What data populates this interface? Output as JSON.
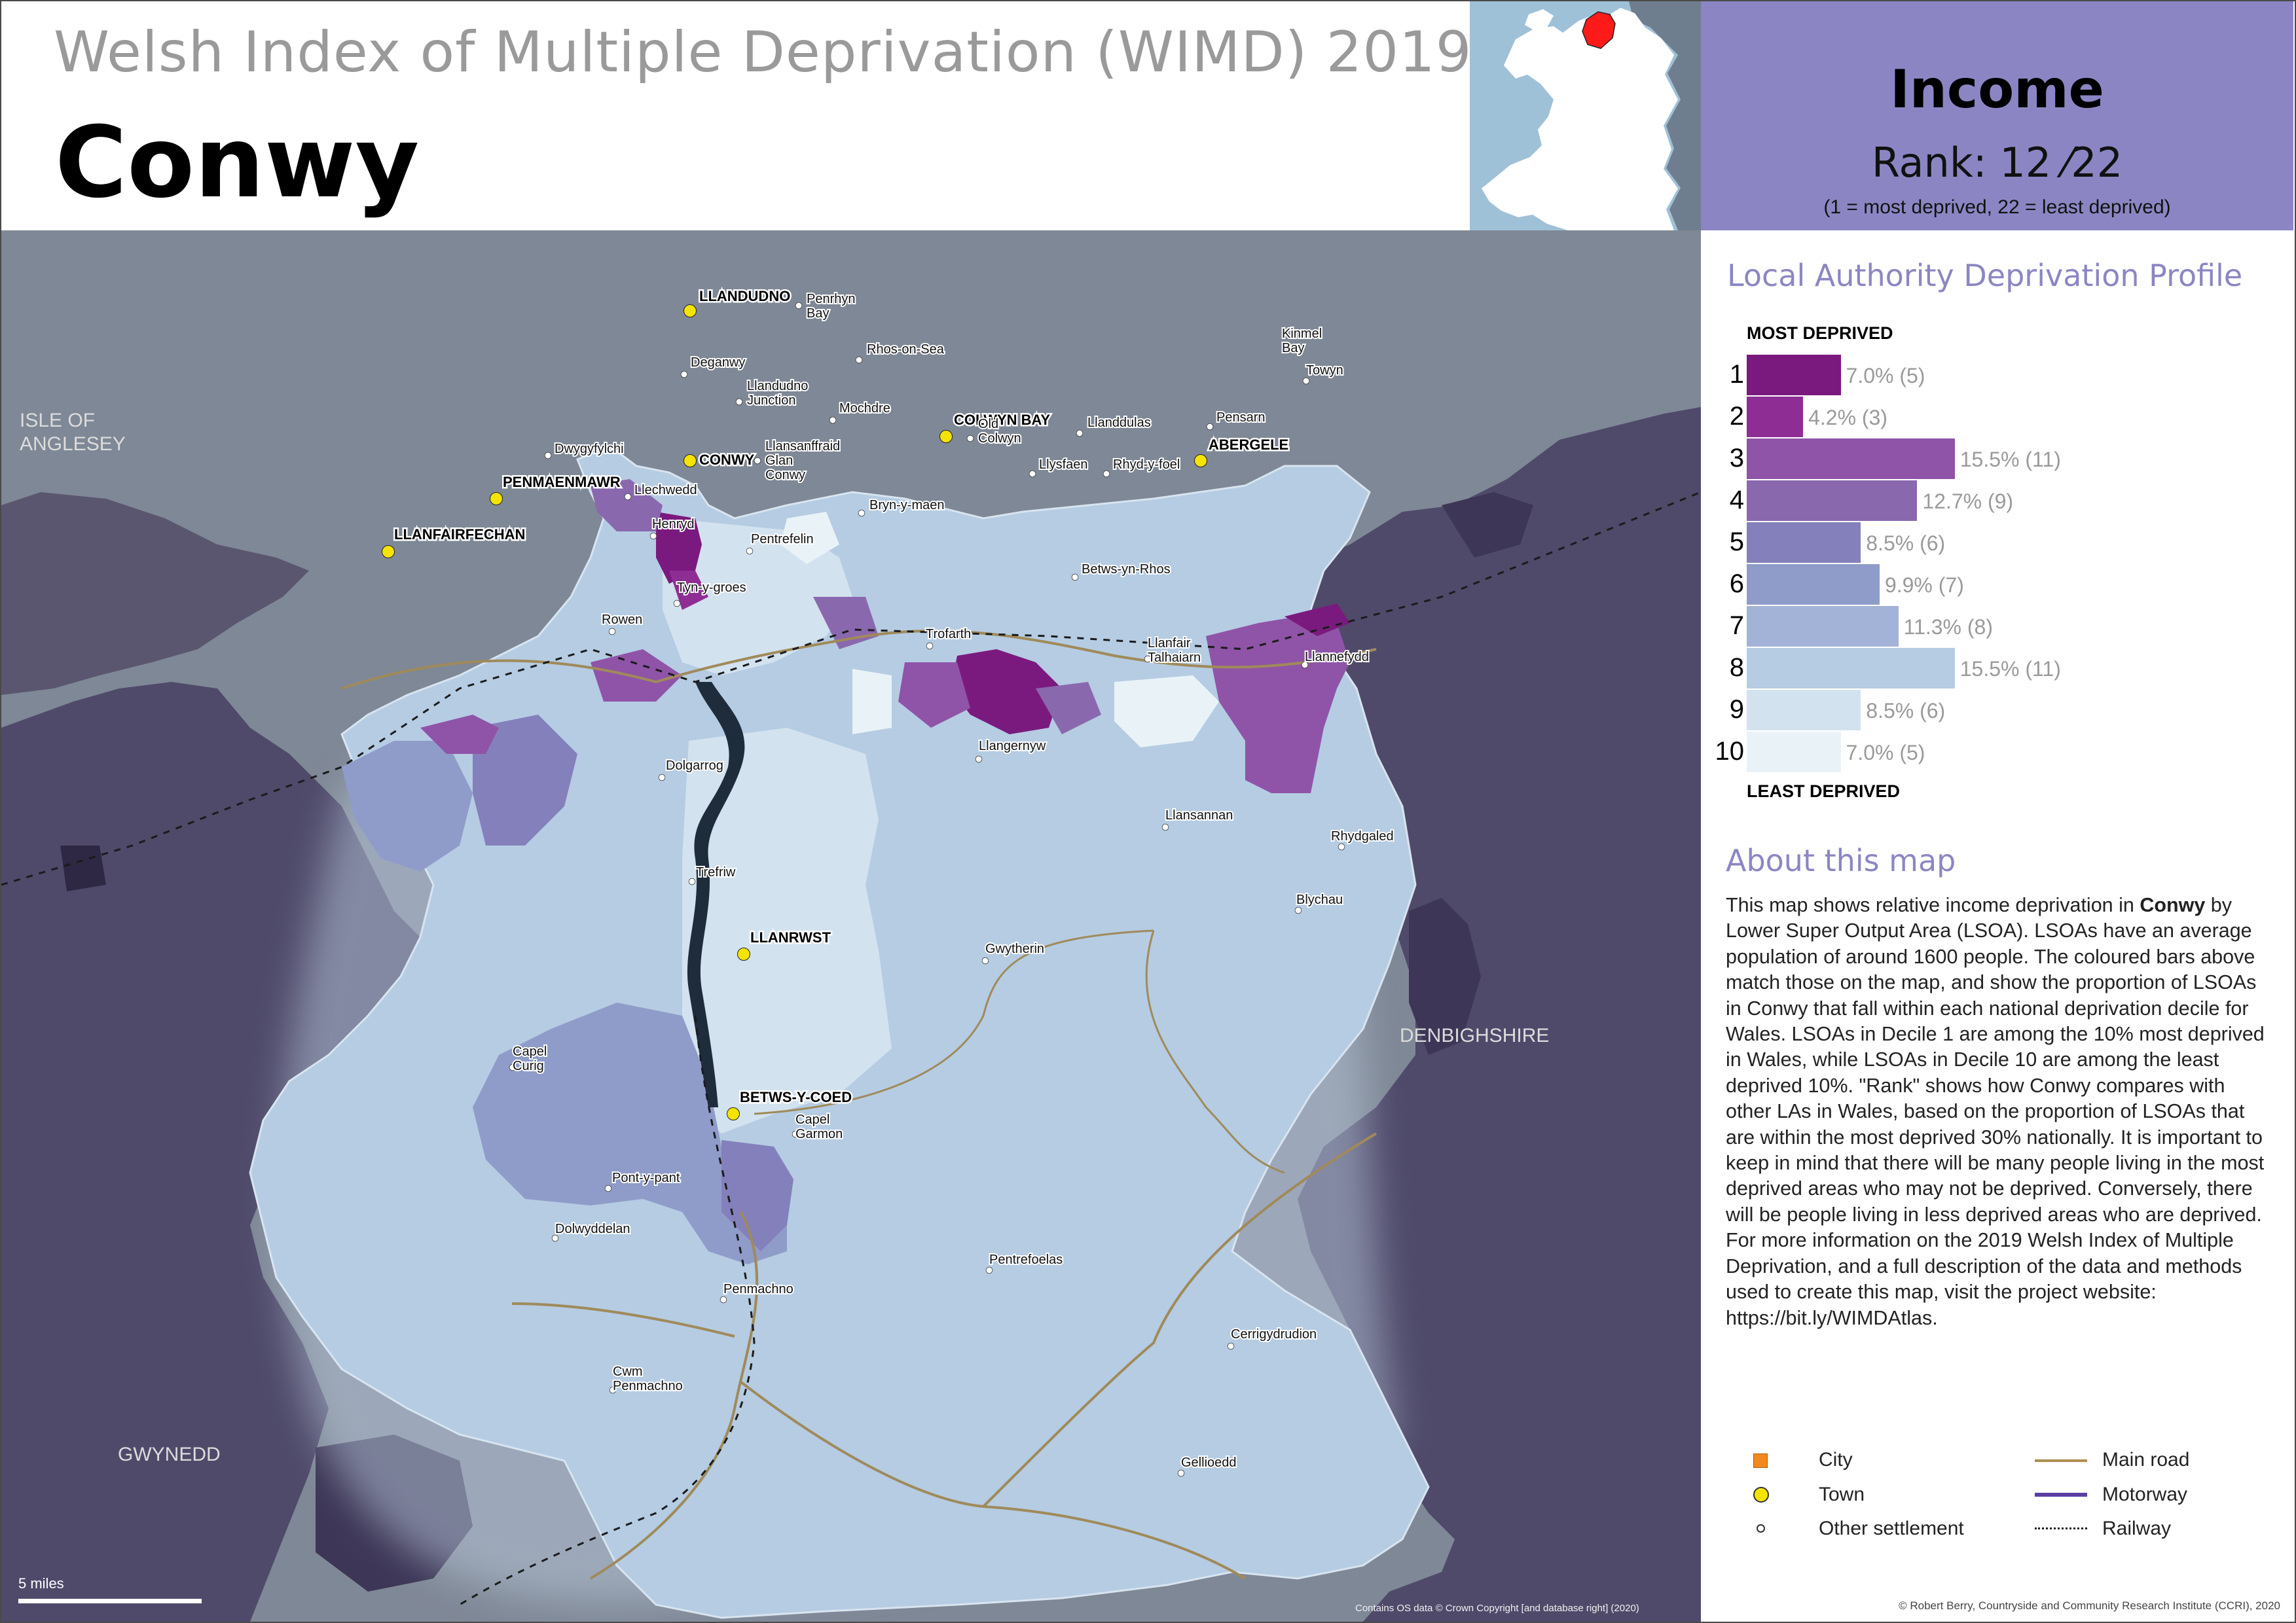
{
  "header": {
    "subtitle": "Welsh Index of Multiple Deprivation (WIMD) 2019",
    "la_name": "Conwy"
  },
  "domain_box": {
    "title": "Income",
    "rank_label": "Rank: 12 ⁄22",
    "rank_note": "(1 =   most deprived, 22 = least deprived)"
  },
  "map": {
    "seas": [
      "ISLE OF ANGLESEY"
    ],
    "areas": [
      {
        "name": "ISLE OF ANGLESEY",
        "class": "area-label"
      },
      {
        "name": "DENBIGHSHIRE",
        "class": "area-label"
      },
      {
        "name": "GWYNEDD",
        "class": "area-label"
      }
    ],
    "towns": [
      {
        "name": "LLANDUDNO"
      },
      {
        "name": "CONWY"
      },
      {
        "name": "COLWYN BAY"
      },
      {
        "name": "ABERGELE"
      },
      {
        "name": "PENMAENMAWR"
      },
      {
        "name": "LLANFAIRFECHAN"
      },
      {
        "name": "LLANRWST"
      },
      {
        "name": "BETWS-Y-COED"
      }
    ],
    "settlements": [
      {
        "name": "Penrhyn Bay"
      },
      {
        "name": "Rhos-on-Sea"
      },
      {
        "name": "Deganwy"
      },
      {
        "name": "Llandudno Junction"
      },
      {
        "name": "Mochdre"
      },
      {
        "name": "Old Colwyn"
      },
      {
        "name": "Llanddulas"
      },
      {
        "name": "Pensarn"
      },
      {
        "name": "Kinmel Bay"
      },
      {
        "name": "Towyn"
      },
      {
        "name": "Dwygyfylchi"
      },
      {
        "name": "Llechwedd"
      },
      {
        "name": "Llansanffraid Glan Conwy"
      },
      {
        "name": "Llysfaen"
      },
      {
        "name": "Rhyd-y-foel"
      },
      {
        "name": "Bryn-y-maen"
      },
      {
        "name": "Henryd"
      },
      {
        "name": "Pentrefelin"
      },
      {
        "name": "Betws-yn-Rhos"
      },
      {
        "name": "Rowen"
      },
      {
        "name": "Tyn-y-groes"
      },
      {
        "name": "Trofarth"
      },
      {
        "name": "Llanfair Talhaiarn"
      },
      {
        "name": "Llannefydd"
      },
      {
        "name": "Llangernyw"
      },
      {
        "name": "Dolgarrog"
      },
      {
        "name": "Llansannan"
      },
      {
        "name": "Rhydgaled"
      },
      {
        "name": "Trefriw"
      },
      {
        "name": "Blychau"
      },
      {
        "name": "Gwytherin"
      },
      {
        "name": "Capel Curig"
      },
      {
        "name": "Capel Garmon"
      },
      {
        "name": "Pont-y-pant"
      },
      {
        "name": "Dolwyddelan"
      },
      {
        "name": "Pentrefoelas"
      },
      {
        "name": "Penmachno"
      },
      {
        "name": "Cerrigydrudion"
      },
      {
        "name": "Cwm Penmachno"
      },
      {
        "name": "Gellioedd"
      }
    ],
    "scale_label": "5 miles",
    "credit": "Contains OS data © Crown Copyright [and database right] (2020)"
  },
  "colors": {
    "decile_1": "#7b1a7e",
    "decile_2": "#8e2e95",
    "decile_3": "#8f54a8",
    "decile_4": "#8a68ae",
    "decile_5": "#8480bb",
    "decile_6": "#8f9cc9",
    "decile_7": "#a3b2d7",
    "decile_8": "#b5cce3",
    "decile_9": "#d3e2ef",
    "decile_10": "#e9f3f7",
    "domain_accent": "#8b86c3"
  },
  "profile": {
    "title": "Local Authority Deprivation Profile",
    "most_label": "MOST DEPRIVED",
    "least_label": "LEAST DEPRIVED",
    "bars": [
      {
        "decile": "1",
        "percent": 7.0,
        "label": "7.0% (5)"
      },
      {
        "decile": "2",
        "percent": 4.2,
        "label": "4.2% (3)"
      },
      {
        "decile": "3",
        "percent": 15.5,
        "label": "15.5% (11)"
      },
      {
        "decile": "4",
        "percent": 12.7,
        "label": "12.7% (9)"
      },
      {
        "decile": "5",
        "percent": 8.5,
        "label": "8.5% (6)"
      },
      {
        "decile": "6",
        "percent": 9.9,
        "label": "9.9% (7)"
      },
      {
        "decile": "7",
        "percent": 11.3,
        "label": "11.3% (8)"
      },
      {
        "decile": "8",
        "percent": 15.5,
        "label": "15.5% (11)"
      },
      {
        "decile": "9",
        "percent": 8.5,
        "label": "8.5% (6)"
      },
      {
        "decile": "10",
        "percent": 7.0,
        "label": "7.0% (5)"
      }
    ]
  },
  "about": {
    "title": "About this map",
    "text_before": "This map shows relative income deprivation in ",
    "text_bold": "Conwy",
    "text_after": " by Lower Super Output Area (LSOA). LSOAs have an average population of around 1600 people. The coloured bars above match those on the map, and show the proportion of LSOAs in Conwy that fall within each national deprivation decile for Wales. LSOAs in Decile 1 are among the 10% most deprived in Wales, while LSOAs in Decile 10 are among the least deprived 10%. \"Rank\" shows how Conwy compares with other LAs in Wales, based on the proportion of LSOAs that are within the most deprived 30% nationally. It is important to keep in mind that there will be many people living in the most deprived areas who may not be deprived. Conversely, there will be people living in less deprived areas who are deprived. For more information on the 2019 Welsh Index of Multiple Deprivation, and a full description of the data and methods used to create this map, visit the project website: https://bit.ly/WIMDAtlas."
  },
  "legend": {
    "city": "City",
    "town": "Town",
    "other": "Other settlement",
    "main_road": "Main road",
    "motorway": "Motorway",
    "railway": "Railway"
  },
  "copyright": "© Robert Berry, Countryside and Community Research Institute (CCRI), 2020"
}
